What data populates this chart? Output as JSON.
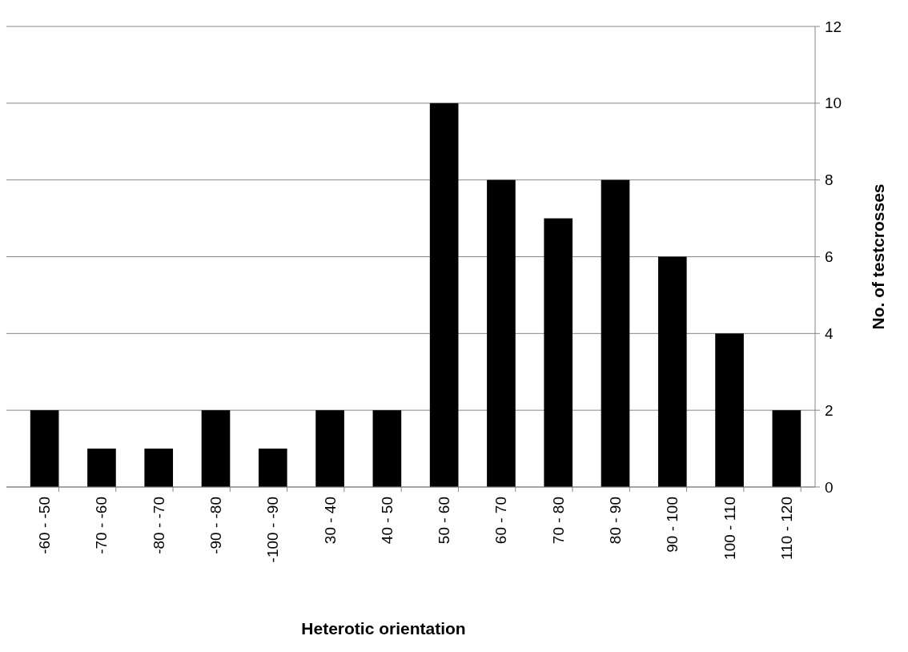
{
  "chart_data": {
    "type": "bar",
    "xlabel": "Heterotic orientation",
    "ylabel": "No. of testcrosses",
    "categories": [
      "-60 - -50",
      "-70 - -60",
      "-80 - -70",
      "-90 - -80",
      "-100 - -90",
      "30 - 40",
      "40 - 50",
      "50 - 60",
      "60 - 70",
      "70 - 80",
      "80 - 90",
      "90 - 100",
      "100 - 110",
      "110 - 120"
    ],
    "values": [
      2,
      1,
      1,
      2,
      1,
      2,
      2,
      10,
      8,
      7,
      8,
      6,
      4,
      2
    ],
    "color": "#000000",
    "ylim": [
      0,
      12
    ],
    "yticks": [
      0,
      2,
      4,
      6,
      8,
      10,
      12
    ],
    "grid": "y"
  }
}
